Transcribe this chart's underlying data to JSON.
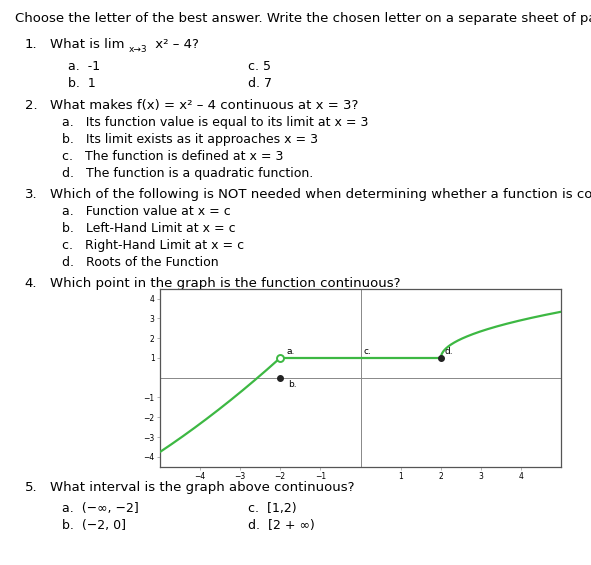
{
  "title": "Choose the letter of the best answer. Write the chosen letter on a separate sheet of paper.",
  "q1_text": "What is lim",
  "q1_lim_sub": "x→3",
  "q1_rest": " x² – 4?",
  "q1_opts_left": [
    "a.  -1",
    "b.  1"
  ],
  "q1_opts_right": [
    "c. 5",
    "d. 7"
  ],
  "q2_text": "What makes f(x) = x² – 4 continuous at x = 3?",
  "q2_opts": [
    "a.   Its function value is equal to its limit at x = 3",
    "b.   Its limit exists as it approaches x = 3",
    "c.   The function is defined at x = 3",
    "d.   The function is a quadratic function."
  ],
  "q3_text": "Which of the following is NOT needed when determining whether a function is continuous.",
  "q3_opts": [
    "a.   Function value at x = c",
    "b.   Left-Hand Limit at x = c",
    "c.   Right-Hand Limit at x = c",
    "d.   Roots of the Function"
  ],
  "q4_text": "Which point in the graph is the function continuous?",
  "q5_text": "What interval is the graph above continuous?",
  "q5_opts_left": [
    "a.  (−∞, −2]",
    "b.  (−2, 0]"
  ],
  "q5_opts_right": [
    "c. [1, 2)",
    "d. [2 + ∞)"
  ],
  "graph": {
    "xlim": [
      -5,
      5
    ],
    "ylim": [
      -4.5,
      4.5
    ],
    "xticks": [
      -4,
      -3,
      -2,
      -1,
      1,
      2,
      3,
      4
    ],
    "yticks": [
      -4,
      -3,
      -2,
      -1,
      1,
      2,
      3,
      4
    ],
    "line_color": "#3db843",
    "axis_color": "#888888",
    "border_color": "#555555",
    "tick_label_size": 5.5
  },
  "font_title": 9.5,
  "font_q": 9.5,
  "font_opt": 9.0,
  "font_italic": 9.0
}
